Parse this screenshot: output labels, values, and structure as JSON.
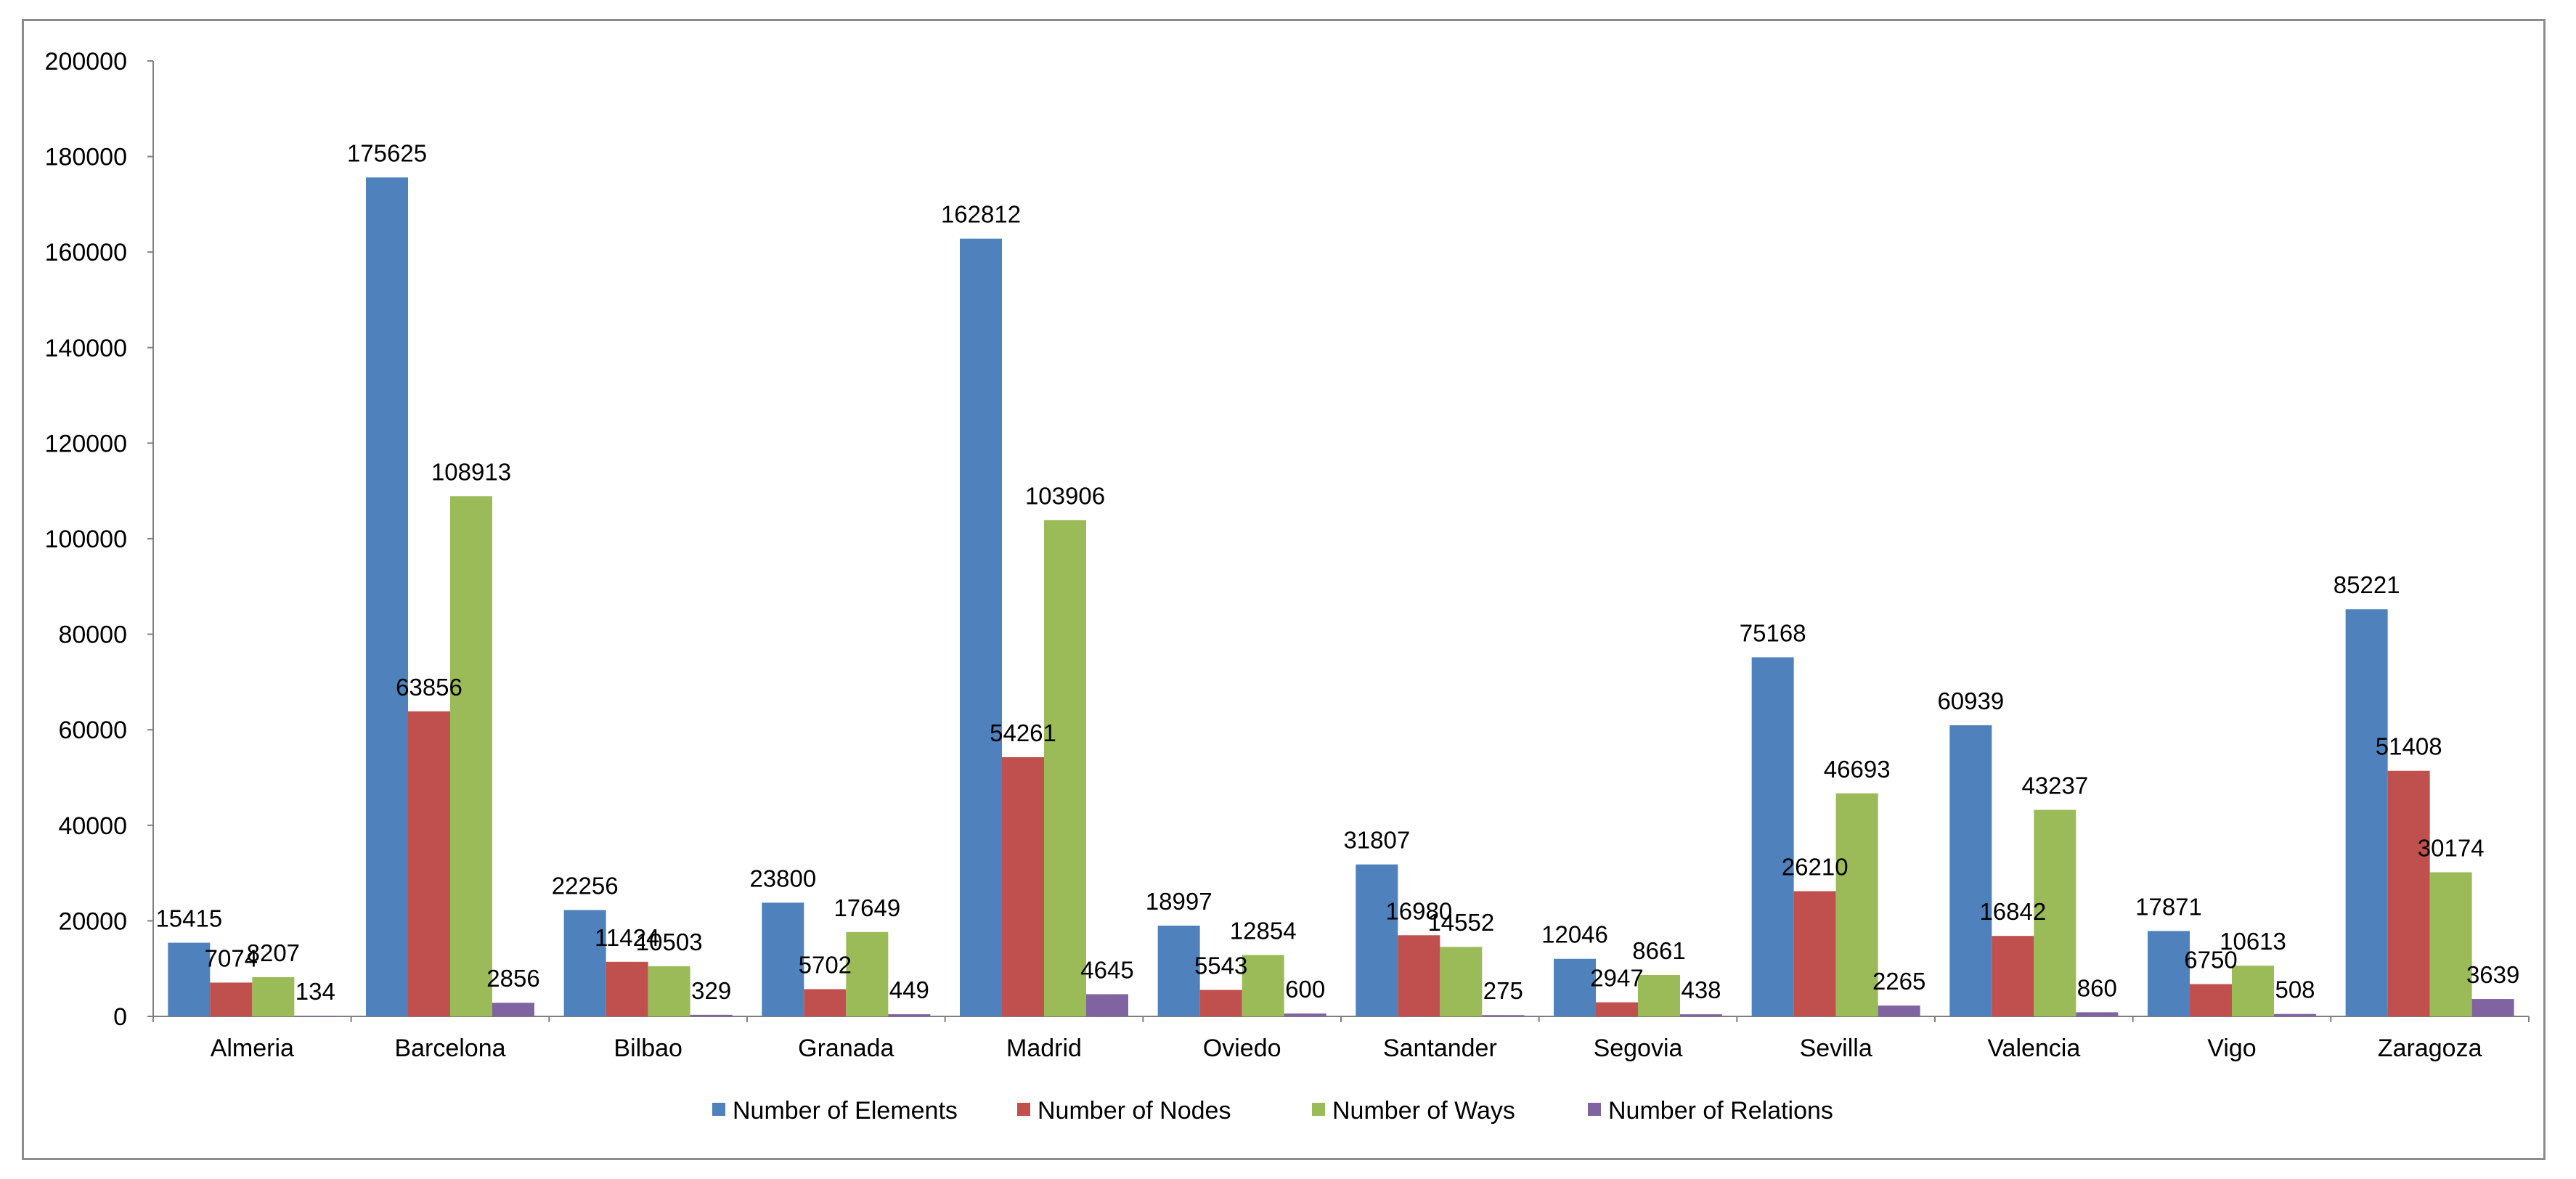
{
  "chart_data": {
    "type": "bar",
    "title": "",
    "xlabel": "",
    "ylabel": "",
    "ylim": [
      0,
      200000
    ],
    "yticks": [
      0,
      20000,
      40000,
      60000,
      80000,
      100000,
      120000,
      140000,
      160000,
      180000,
      200000
    ],
    "grid": false,
    "legend_position": "bottom",
    "categories": [
      "Almeria",
      "Barcelona",
      "Bilbao",
      "Granada",
      "Madrid",
      "Oviedo",
      "Santander",
      "Segovia",
      "Sevilla",
      "Valencia",
      "Vigo",
      "Zaragoza"
    ],
    "series": [
      {
        "name": "Number of Elements",
        "color": "#4f81bd",
        "values": [
          15415,
          175625,
          22256,
          23800,
          162812,
          18997,
          31807,
          12046,
          75168,
          60939,
          17871,
          85221
        ]
      },
      {
        "name": "Number of Nodes",
        "color": "#c0504d",
        "values": [
          7074,
          63856,
          11424,
          5702,
          54261,
          5543,
          16980,
          2947,
          26210,
          16842,
          6750,
          51408
        ]
      },
      {
        "name": "Number of Ways",
        "color": "#9bbb59",
        "values": [
          8207,
          108913,
          10503,
          17649,
          103906,
          12854,
          14552,
          8661,
          46693,
          43237,
          10613,
          30174
        ]
      },
      {
        "name": "Number of Relations",
        "color": "#8064a2",
        "values": [
          134,
          2856,
          329,
          449,
          4645,
          600,
          275,
          438,
          2265,
          860,
          508,
          3639
        ]
      }
    ]
  }
}
